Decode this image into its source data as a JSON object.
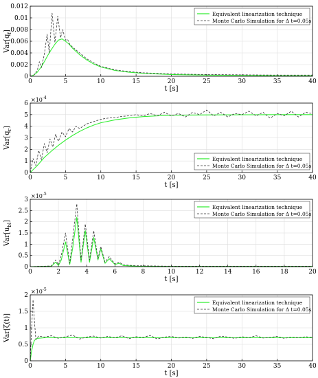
{
  "colors": {
    "eq": "#33ee33",
    "mc": "#333333",
    "grid": "#dddddd",
    "axis": "#000000"
  },
  "chart_data": [
    {
      "type": "line",
      "ylabel": "Var[q",
      "ylabel_sub": "f",
      "ylabel_end": "]",
      "xlabel": "t [s]",
      "xlim": [
        0,
        40
      ],
      "ylim": [
        0,
        0.012
      ],
      "xticks": [
        "0",
        "5",
        "10",
        "15",
        "20",
        "25",
        "30",
        "35",
        "40"
      ],
      "yticks": [
        "0",
        "0.002",
        "0.004",
        "0.006",
        "0.008",
        "0.01",
        "0.012"
      ],
      "exponent": "",
      "grid": true,
      "legend_position": "top-right",
      "series": [
        {
          "name": "Equivalent linearization technique",
          "style": "solid",
          "points": [
            [
              0,
              0
            ],
            [
              0.5,
              0.0002
            ],
            [
              1,
              0.0007
            ],
            [
              1.5,
              0.0015
            ],
            [
              2,
              0.0025
            ],
            [
              2.5,
              0.0036
            ],
            [
              3,
              0.0046
            ],
            [
              3.5,
              0.0055
            ],
            [
              4,
              0.0062
            ],
            [
              4.5,
              0.0064
            ],
            [
              5,
              0.006
            ],
            [
              5.5,
              0.0055
            ],
            [
              6,
              0.0048
            ],
            [
              7,
              0.0037
            ],
            [
              8,
              0.0028
            ],
            [
              9,
              0.0021
            ],
            [
              10,
              0.0016
            ],
            [
              12,
              0.001
            ],
            [
              14,
              0.0007
            ],
            [
              16,
              0.0005
            ],
            [
              20,
              0.0003
            ],
            [
              25,
              0.0002
            ],
            [
              30,
              0.00015
            ],
            [
              35,
              0.0001
            ],
            [
              40,
              0.0001
            ]
          ]
        },
        {
          "name": "Monte Carlo Simulation for Δ t=0.05s",
          "style": "dashed",
          "points": [
            [
              0,
              0
            ],
            [
              0.5,
              0.0002
            ],
            [
              1,
              0.001
            ],
            [
              1.3,
              0.0025
            ],
            [
              1.6,
              0.0015
            ],
            [
              2,
              0.0038
            ],
            [
              2.4,
              0.0072
            ],
            [
              2.7,
              0.004
            ],
            [
              3.1,
              0.0108
            ],
            [
              3.5,
              0.0058
            ],
            [
              3.9,
              0.0103
            ],
            [
              4.3,
              0.0066
            ],
            [
              4.6,
              0.008
            ],
            [
              5,
              0.0062
            ],
            [
              5.3,
              0.0063
            ],
            [
              5.6,
              0.0055
            ],
            [
              6,
              0.005
            ],
            [
              7,
              0.004
            ],
            [
              8,
              0.003
            ],
            [
              9,
              0.0023
            ],
            [
              10,
              0.0017
            ],
            [
              12,
              0.0011
            ],
            [
              14,
              0.0008
            ],
            [
              16,
              0.0006
            ],
            [
              20,
              0.0004
            ],
            [
              25,
              0.0003
            ],
            [
              30,
              0.00025
            ],
            [
              35,
              0.0002
            ],
            [
              40,
              0.0002
            ]
          ]
        }
      ]
    },
    {
      "type": "line",
      "ylabel": "Var[q",
      "ylabel_sub": "r",
      "ylabel_end": "]",
      "xlabel": "t [s]",
      "xlim": [
        0,
        40
      ],
      "ylim": [
        0,
        6
      ],
      "xticks": [
        "0",
        "5",
        "10",
        "15",
        "20",
        "25",
        "30",
        "35",
        "40"
      ],
      "yticks": [
        "0",
        "1",
        "2",
        "3",
        "4",
        "5",
        "6"
      ],
      "exponent": "-4",
      "grid": true,
      "legend_position": "bottom-right",
      "series": [
        {
          "name": "Equivalent linearization technique",
          "style": "solid",
          "points": [
            [
              0,
              0
            ],
            [
              1,
              0.6
            ],
            [
              2,
              1.3
            ],
            [
              3,
              1.85
            ],
            [
              4,
              2.35
            ],
            [
              5,
              2.8
            ],
            [
              6,
              3.2
            ],
            [
              7,
              3.55
            ],
            [
              8,
              3.85
            ],
            [
              9,
              4.1
            ],
            [
              10,
              4.3
            ],
            [
              12,
              4.55
            ],
            [
              14,
              4.72
            ],
            [
              16,
              4.83
            ],
            [
              18,
              4.9
            ],
            [
              20,
              4.95
            ],
            [
              25,
              4.98
            ],
            [
              30,
              4.99
            ],
            [
              35,
              5.0
            ],
            [
              40,
              5.0
            ]
          ]
        },
        {
          "name": "Monte Carlo Simulation for Δ t=0.05s",
          "style": "dashed",
          "points": [
            [
              0,
              0
            ],
            [
              0.4,
              1.2
            ],
            [
              0.8,
              0.6
            ],
            [
              1.2,
              1.9
            ],
            [
              1.6,
              1.1
            ],
            [
              2,
              2.5
            ],
            [
              2.4,
              1.7
            ],
            [
              2.8,
              2.9
            ],
            [
              3.2,
              2.2
            ],
            [
              3.6,
              3.3
            ],
            [
              4,
              2.7
            ],
            [
              4.5,
              3.5
            ],
            [
              5,
              3.1
            ],
            [
              5.5,
              3.8
            ],
            [
              6,
              3.5
            ],
            [
              6.5,
              4.0
            ],
            [
              7,
              3.8
            ],
            [
              8,
              4.2
            ],
            [
              9,
              4.4
            ],
            [
              10,
              4.6
            ],
            [
              11,
              4.7
            ],
            [
              12,
              4.75
            ],
            [
              13,
              4.85
            ],
            [
              14,
              4.9
            ],
            [
              15,
              5.0
            ],
            [
              16,
              4.9
            ],
            [
              17,
              5.1
            ],
            [
              18,
              4.9
            ],
            [
              19,
              5.2
            ],
            [
              20,
              4.9
            ],
            [
              21,
              5.1
            ],
            [
              22,
              4.8
            ],
            [
              23,
              5.2
            ],
            [
              24,
              5.0
            ],
            [
              25,
              5.4
            ],
            [
              26,
              4.9
            ],
            [
              27,
              5.2
            ],
            [
              28,
              4.8
            ],
            [
              29,
              5.1
            ],
            [
              30,
              5.0
            ],
            [
              31,
              5.3
            ],
            [
              32,
              4.9
            ],
            [
              33,
              5.2
            ],
            [
              34,
              4.7
            ],
            [
              35,
              5.1
            ],
            [
              36,
              4.9
            ],
            [
              37,
              5.3
            ],
            [
              38,
              4.8
            ],
            [
              39,
              5.2
            ],
            [
              40,
              5.1
            ]
          ]
        }
      ]
    },
    {
      "type": "line",
      "ylabel": "Var[u",
      "ylabel_sub": "bl",
      "ylabel_end": "]",
      "xlabel": "t [s]",
      "xlim": [
        0,
        20
      ],
      "ylim": [
        0,
        3
      ],
      "xticks": [
        "0",
        "2",
        "4",
        "6",
        "8",
        "10",
        "12",
        "14",
        "16",
        "18",
        "20"
      ],
      "yticks": [
        "0",
        "0.5",
        "1",
        "1.5",
        "2",
        "2.5",
        "3"
      ],
      "exponent": "-5",
      "grid": true,
      "legend_position": "top-right",
      "series": [
        {
          "name": "Equivalent linearization technique",
          "style": "solid",
          "points": [
            [
              0,
              0
            ],
            [
              1.5,
              0.02
            ],
            [
              1.8,
              0.2
            ],
            [
              2.0,
              0.05
            ],
            [
              2.2,
              0.3
            ],
            [
              2.5,
              1.1
            ],
            [
              2.8,
              0.1
            ],
            [
              3.0,
              0.8
            ],
            [
              3.3,
              2.2
            ],
            [
              3.6,
              0.2
            ],
            [
              3.9,
              1.6
            ],
            [
              4.2,
              0.2
            ],
            [
              4.5,
              1.3
            ],
            [
              4.8,
              0.3
            ],
            [
              5.0,
              0.8
            ],
            [
              5.3,
              0.15
            ],
            [
              5.6,
              0.35
            ],
            [
              6.0,
              0.1
            ],
            [
              6.3,
              0.15
            ],
            [
              6.6,
              0.05
            ],
            [
              7.5,
              0.02
            ],
            [
              10,
              0.01
            ],
            [
              20,
              0.01
            ]
          ]
        },
        {
          "name": "Monte Carlo Simulation for Δ t=0.05s",
          "style": "dashed",
          "points": [
            [
              0,
              0
            ],
            [
              1.5,
              0.03
            ],
            [
              1.8,
              0.3
            ],
            [
              2.0,
              0.08
            ],
            [
              2.2,
              0.5
            ],
            [
              2.5,
              1.5
            ],
            [
              2.8,
              0.15
            ],
            [
              3.0,
              1.2
            ],
            [
              3.3,
              2.8
            ],
            [
              3.6,
              0.3
            ],
            [
              3.9,
              1.9
            ],
            [
              4.2,
              0.3
            ],
            [
              4.5,
              1.6
            ],
            [
              4.8,
              0.35
            ],
            [
              5.0,
              0.9
            ],
            [
              5.3,
              0.2
            ],
            [
              5.6,
              0.45
            ],
            [
              6.0,
              0.12
            ],
            [
              6.3,
              0.2
            ],
            [
              6.6,
              0.08
            ],
            [
              7.5,
              0.04
            ],
            [
              10,
              0.02
            ],
            [
              20,
              0.02
            ]
          ]
        }
      ]
    },
    {
      "type": "line",
      "ylabel": "Var[ζ(t)]",
      "ylabel_sub": "",
      "ylabel_end": "",
      "xlabel": "t [s]",
      "xlim": [
        0,
        40
      ],
      "ylim": [
        0,
        2
      ],
      "xticks": [
        "0",
        "5",
        "10",
        "15",
        "20",
        "25",
        "30",
        "35",
        "40"
      ],
      "yticks": [
        "0",
        "0.5",
        "1",
        "1.5",
        "2"
      ],
      "exponent": "-5",
      "grid": true,
      "legend_position": "top-right",
      "series": [
        {
          "name": "Equivalent linearization technique",
          "style": "solid",
          "points": [
            [
              0,
              0
            ],
            [
              0.2,
              0.3
            ],
            [
              0.4,
              0.5
            ],
            [
              0.6,
              0.62
            ],
            [
              1,
              0.68
            ],
            [
              2,
              0.7
            ],
            [
              40,
              0.7
            ]
          ]
        },
        {
          "name": "Monte Carlo Simulation for Δ t=0.05s",
          "style": "dashed",
          "points": [
            [
              0,
              0
            ],
            [
              0.2,
              1.0
            ],
            [
              0.4,
              1.85
            ],
            [
              0.6,
              1.2
            ],
            [
              0.8,
              0.65
            ],
            [
              1.2,
              0.75
            ],
            [
              2,
              0.72
            ],
            [
              3,
              0.76
            ],
            [
              4,
              0.68
            ],
            [
              5,
              0.73
            ],
            [
              6,
              0.78
            ],
            [
              7,
              0.66
            ],
            [
              8,
              0.72
            ],
            [
              9,
              0.75
            ],
            [
              10,
              0.69
            ],
            [
              11,
              0.74
            ],
            [
              12,
              0.7
            ],
            [
              13,
              0.76
            ],
            [
              14,
              0.67
            ],
            [
              15,
              0.73
            ],
            [
              16,
              0.71
            ],
            [
              17,
              0.77
            ],
            [
              18,
              0.66
            ],
            [
              19,
              0.72
            ],
            [
              20,
              0.74
            ],
            [
              21,
              0.69
            ],
            [
              22,
              0.72
            ],
            [
              23,
              0.68
            ],
            [
              24,
              0.74
            ],
            [
              25,
              0.71
            ],
            [
              26,
              0.67
            ],
            [
              27,
              0.75
            ],
            [
              28,
              0.72
            ],
            [
              29,
              0.68
            ],
            [
              30,
              0.73
            ],
            [
              31,
              0.7
            ],
            [
              32,
              0.76
            ],
            [
              33,
              0.69
            ],
            [
              34,
              0.71
            ],
            [
              35,
              0.74
            ],
            [
              36,
              0.68
            ],
            [
              37,
              0.72
            ],
            [
              38,
              0.7
            ],
            [
              39,
              0.73
            ],
            [
              40,
              0.71
            ]
          ]
        }
      ]
    }
  ]
}
